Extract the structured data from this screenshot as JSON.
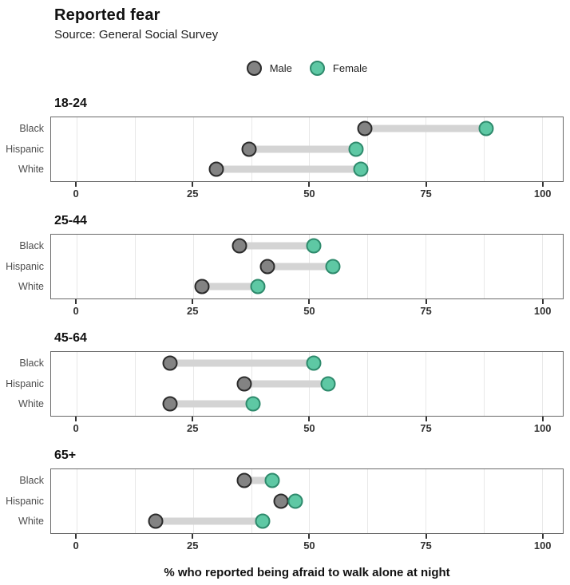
{
  "header": {
    "title": "Reported fear",
    "subtitle": "Source: General Social Survey"
  },
  "legend": {
    "items": [
      {
        "name": "male",
        "label": "Male",
        "fill": "#838383",
        "stroke": "#2b2b2b"
      },
      {
        "name": "female",
        "label": "Female",
        "fill": "#5EC8A4",
        "stroke": "#2E8A6C"
      }
    ]
  },
  "chart_data": {
    "type": "dumbbell",
    "title": "Reported fear",
    "subtitle": "Source: General Social Survey",
    "xlabel": "% who reported being afraid to walk alone at night",
    "xlim": [
      -5.5,
      104.5
    ],
    "x_ticks": [
      "0",
      "25",
      "50",
      "75",
      "100"
    ],
    "x_tick_values": [
      0,
      25,
      50,
      75,
      100
    ],
    "grid_step": 12.5,
    "grid": true,
    "legend_position": "top-center",
    "categories": [
      "Black",
      "Hispanic",
      "White"
    ],
    "series_names": [
      "Male",
      "Female"
    ],
    "panels": [
      {
        "age_group": "18-24",
        "rows": [
          {
            "race": "Black",
            "male": 62,
            "female": 88
          },
          {
            "race": "Hispanic",
            "male": 37,
            "female": 60
          },
          {
            "race": "White",
            "male": 30,
            "female": 61
          }
        ]
      },
      {
        "age_group": "25-44",
        "rows": [
          {
            "race": "Black",
            "male": 35,
            "female": 51
          },
          {
            "race": "Hispanic",
            "male": 41,
            "female": 55
          },
          {
            "race": "White",
            "male": 27,
            "female": 39
          }
        ]
      },
      {
        "age_group": "45-64",
        "rows": [
          {
            "race": "Black",
            "male": 20,
            "female": 51
          },
          {
            "race": "Hispanic",
            "male": 36,
            "female": 54
          },
          {
            "race": "White",
            "male": 20,
            "female": 38
          }
        ]
      },
      {
        "age_group": "65+",
        "rows": [
          {
            "race": "Black",
            "male": 36,
            "female": 42
          },
          {
            "race": "Hispanic",
            "male": 44,
            "female": 47
          },
          {
            "race": "White",
            "male": 17,
            "female": 40
          }
        ]
      }
    ],
    "colors": {
      "male_fill": "#838383",
      "male_stroke": "#2b2b2b",
      "female_fill": "#5EC8A4",
      "female_stroke": "#2E8A6C",
      "connector": "#d4d4d4",
      "gridline": "#e8e8e8",
      "panel_border": "#6a6a6a",
      "axis_text": "#333333",
      "category_text": "#4d4d4d"
    }
  }
}
